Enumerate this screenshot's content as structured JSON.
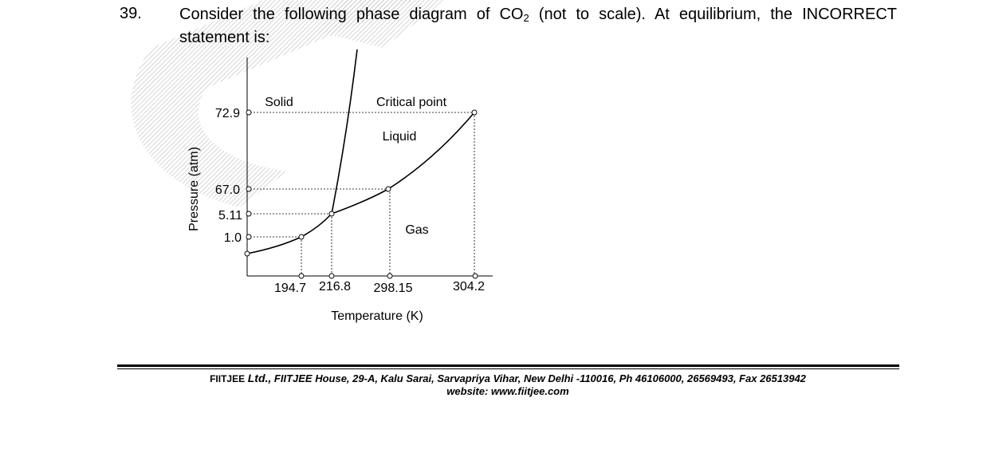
{
  "question": {
    "number": "39.",
    "text_before": "Consider the following phase diagram of CO",
    "subscript": "2",
    "text_after": " (not to scale). At equilibrium, the INCORRECT statement is:"
  },
  "diagram": {
    "y_axis_label": "Pressure (atm)",
    "x_axis_label": "Temperature (K)",
    "y_ticks": [
      "72.9",
      "67.0",
      "5.11",
      "1.0"
    ],
    "x_ticks": [
      "194.7",
      "216.8",
      "298.15",
      "304.2"
    ],
    "regions": {
      "solid": "Solid",
      "critical_point": "Critical point",
      "liquid": "Liquid",
      "gas": "Gas"
    }
  },
  "footer": {
    "brand": "FIITJEE",
    "ltd": "Ltd.,",
    "address": "FIITJEE House, 29-A, Kalu  Sarai, Sarvapriya Vihar, New Delhi -110016, Ph 46106000, 26569493, Fax 26513942",
    "website": "website: www.fiitjee.com"
  }
}
